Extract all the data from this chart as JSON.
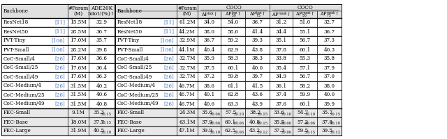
{
  "left_table": {
    "rows": [
      [
        "ResNet18",
        "[11]",
        "15.5M",
        "32.9"
      ],
      [
        "ResNet50",
        "[11]",
        "28.5M",
        "36.7"
      ],
      [
        "PVT-Tiny",
        "[106]",
        "17.0M",
        "35.7"
      ],
      [
        "PVT-Small",
        "[106]",
        "28.2M",
        "39.8"
      ],
      [
        "CoC-Small/4",
        "[26]",
        "17.6M",
        "36.6"
      ],
      [
        "CoC-Small/25",
        "[26]",
        "17.6M",
        "36.4"
      ],
      [
        "CoC-Small/49",
        "[26]",
        "17.6M",
        "36.3"
      ],
      [
        "CoC-Medium/4",
        "[26]",
        "31.5M",
        "40.2"
      ],
      [
        "CoC-Medium/25",
        "[26]",
        "31.5M",
        "40.6"
      ],
      [
        "CoC-Medium/49",
        "[26]",
        "31.5M",
        "40.8"
      ]
    ],
    "fec_rows": [
      [
        "FEC-Small",
        "9.1M",
        "35.3",
        "0.15"
      ],
      [
        "FEC-Base",
        "18.0M",
        "37.7",
        "0.15"
      ],
      [
        "FEC-Large",
        "31.9M",
        "40.5",
        "0.10"
      ]
    ]
  },
  "right_table": {
    "rows": [
      [
        "ResNet18",
        "[11]",
        "61.2M",
        "34.0",
        "54.0",
        "36.7",
        "31.2",
        "51.0",
        "32.7"
      ],
      [
        "ResNet50",
        "[11]",
        "44.2M",
        "38.0",
        "58.6",
        "41.4",
        "34.4",
        "55.1",
        "36.7"
      ],
      [
        "PVT-Tiny",
        "[106]",
        "32.9M",
        "36.7",
        "59.2",
        "39.3",
        "35.1",
        "56.7",
        "37.3"
      ],
      [
        "PVT-Small",
        "[106]",
        "44.1M",
        "40.4",
        "62.9",
        "43.8",
        "37.8",
        "60.1",
        "40.3"
      ],
      [
        "CoC-Small/4",
        "[26]",
        "32.7M",
        "35.9",
        "58.3",
        "38.3",
        "33.8",
        "55.3",
        "35.8"
      ],
      [
        "CoC-Small/25",
        "[26]",
        "32.7M",
        "37.5",
        "60.1",
        "40.0",
        "35.4",
        "57.1",
        "37.9"
      ],
      [
        "CoC-Small/49",
        "[26]",
        "32.7M",
        "37.2",
        "59.8",
        "39.7",
        "34.9",
        "56.7",
        "37.0"
      ],
      [
        "CoC-Medium/4",
        "[26]",
        "46.7M",
        "38.6",
        "61.1",
        "41.5",
        "36.1",
        "58.2",
        "38.0"
      ],
      [
        "CoC-Medium/25",
        "[26]",
        "46.7M",
        "40.1",
        "62.8",
        "43.6",
        "37.4",
        "59.9",
        "40.0"
      ],
      [
        "CoC-Medium/49",
        "[26]",
        "46.7M",
        "40.6",
        "63.3",
        "43.9",
        "37.6",
        "60.1",
        "39.9"
      ]
    ],
    "fec_rows": [
      [
        "FEC-Small",
        "24.3M",
        "35.6",
        "0.06",
        "57.5",
        "0.10",
        "38.2",
        "0.15",
        "33.6",
        "0.10",
        "54.7",
        "0.10",
        "35.7",
        "0.15"
      ],
      [
        "FEC-Base",
        "63.1M",
        "37.9",
        "0.06",
        "60.1",
        "0.06",
        "40.8",
        "0.15",
        "35.5",
        "0.06",
        "57.2",
        "0.06",
        "37.8",
        "0.10"
      ],
      [
        "FEC-Large",
        "47.1M",
        "39.9",
        "0.10",
        "62.5",
        "0.06",
        "43.2",
        "0.12",
        "37.3",
        "0.06",
        "59.5",
        "0.15",
        "39.5",
        "0.12"
      ]
    ]
  },
  "bg_header": "#e0e0e0",
  "bg_fec": "#e8e8e8",
  "text_color_ref": "#4472c4",
  "font_size": 5.2,
  "font_size_small": 3.8
}
